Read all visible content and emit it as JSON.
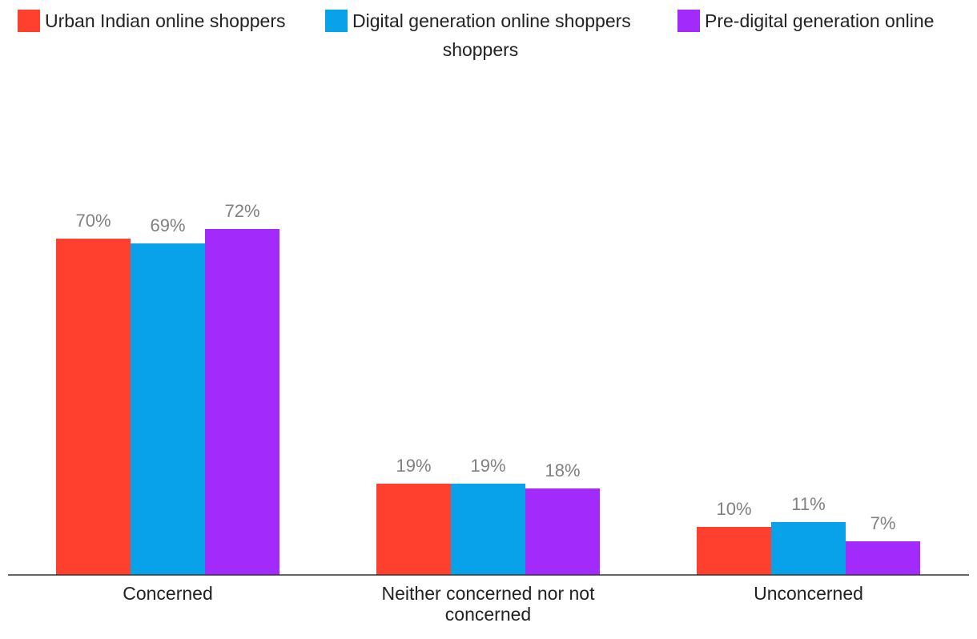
{
  "chart_data": {
    "type": "bar",
    "title": "",
    "xlabel": "",
    "ylabel": "",
    "ylim": [
      0,
      100
    ],
    "grid": false,
    "legend_position": "top",
    "categories": [
      [
        "Concerned"
      ],
      [
        "Neither concerned nor not",
        "concerned"
      ],
      [
        "Unconcerned"
      ]
    ],
    "series": [
      {
        "name": "Urban Indian online shoppers",
        "color": "#ff402e",
        "values": [
          70,
          19,
          10
        ],
        "labels": [
          "70%",
          "19%",
          "10%"
        ]
      },
      {
        "name": "Digital generation online shoppers",
        "color": "#08a2ea",
        "values": [
          69,
          19,
          11
        ],
        "labels": [
          "69%",
          "19%",
          "11%"
        ]
      },
      {
        "name": "Pre-digital generation online",
        "name_cont": "shoppers",
        "color": "#a22bfc",
        "values": [
          72,
          18,
          7
        ],
        "labels": [
          "72%",
          "18%",
          "7%"
        ]
      }
    ]
  }
}
